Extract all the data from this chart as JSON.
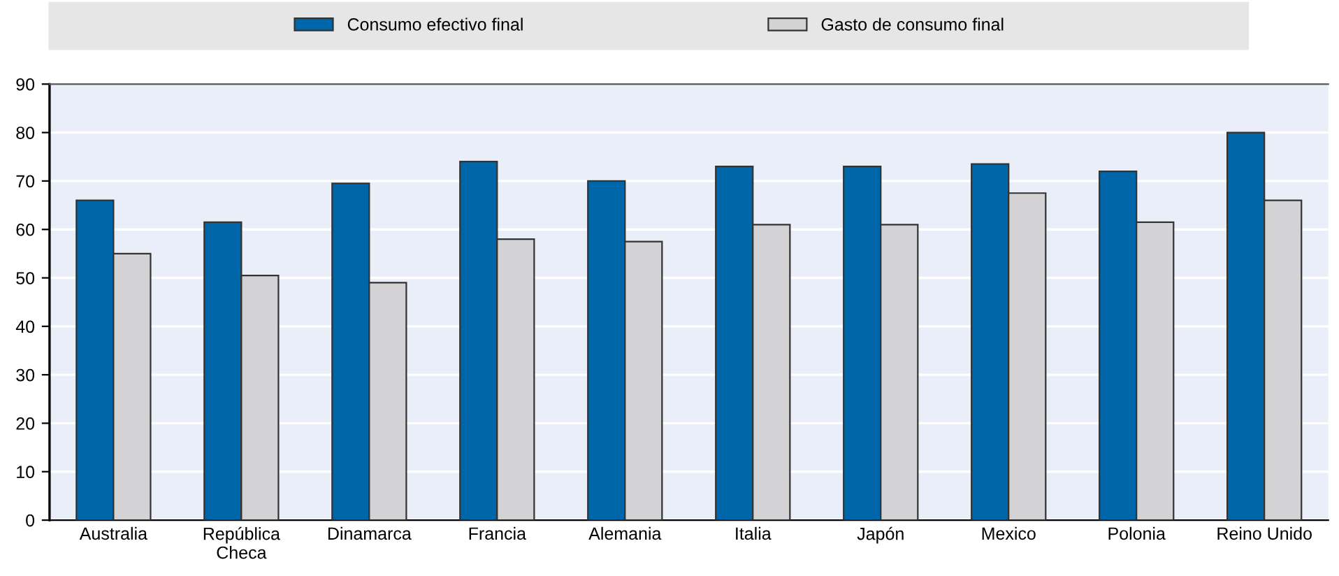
{
  "chart_data": {
    "type": "bar",
    "categories": [
      "Australia",
      "República\nCheca",
      "Dinamarca",
      "Francia",
      "Alemania",
      "Italia",
      "Japón",
      "Mexico",
      "Polonia",
      "Reino Unido"
    ],
    "series": [
      {
        "name": "Consumo efectivo final",
        "color": "#0066aa",
        "values": [
          66,
          61.5,
          69.5,
          74,
          70,
          73,
          73,
          73.5,
          72,
          80
        ]
      },
      {
        "name": "Gasto de consumo final",
        "color": "#d3d3d5",
        "values": [
          55,
          50.5,
          49,
          58,
          57.5,
          61,
          61,
          67.5,
          61.5,
          66
        ]
      }
    ],
    "ylim": [
      0,
      90
    ],
    "yticks": [
      0,
      10,
      20,
      30,
      40,
      50,
      60,
      70,
      80,
      90
    ],
    "grid": "y",
    "legend": "top"
  }
}
